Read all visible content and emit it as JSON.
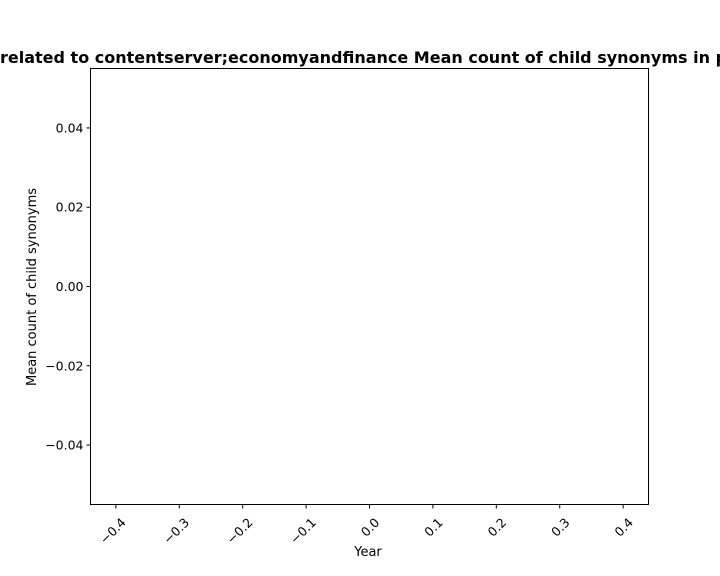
{
  "chart_data": {
    "type": "line",
    "title": "related to contentserver;economyandfinance Mean count of child synonyms in p",
    "xlabel": "Year",
    "ylabel": "Mean count of child synonyms",
    "xlim": [
      -0.44,
      0.44
    ],
    "ylim": [
      -0.055,
      0.055
    ],
    "xticks": [
      -0.4,
      -0.3,
      -0.2,
      -0.1,
      0.0,
      0.1,
      0.2,
      0.3,
      0.4
    ],
    "xtick_labels": [
      "−0.4",
      "−0.3",
      "−0.2",
      "−0.1",
      "0.0",
      "0.1",
      "0.2",
      "0.3",
      "0.4"
    ],
    "yticks": [
      0.04,
      0.02,
      0.0,
      -0.02,
      -0.04
    ],
    "ytick_labels": [
      "0.04",
      "0.02",
      "0.00",
      "−0.02",
      "−0.04"
    ],
    "xtick_rotation_deg": -45,
    "series": [],
    "grid": false,
    "legend": "none",
    "colors": {
      "axis": "#000000",
      "background": "#ffffff"
    }
  }
}
